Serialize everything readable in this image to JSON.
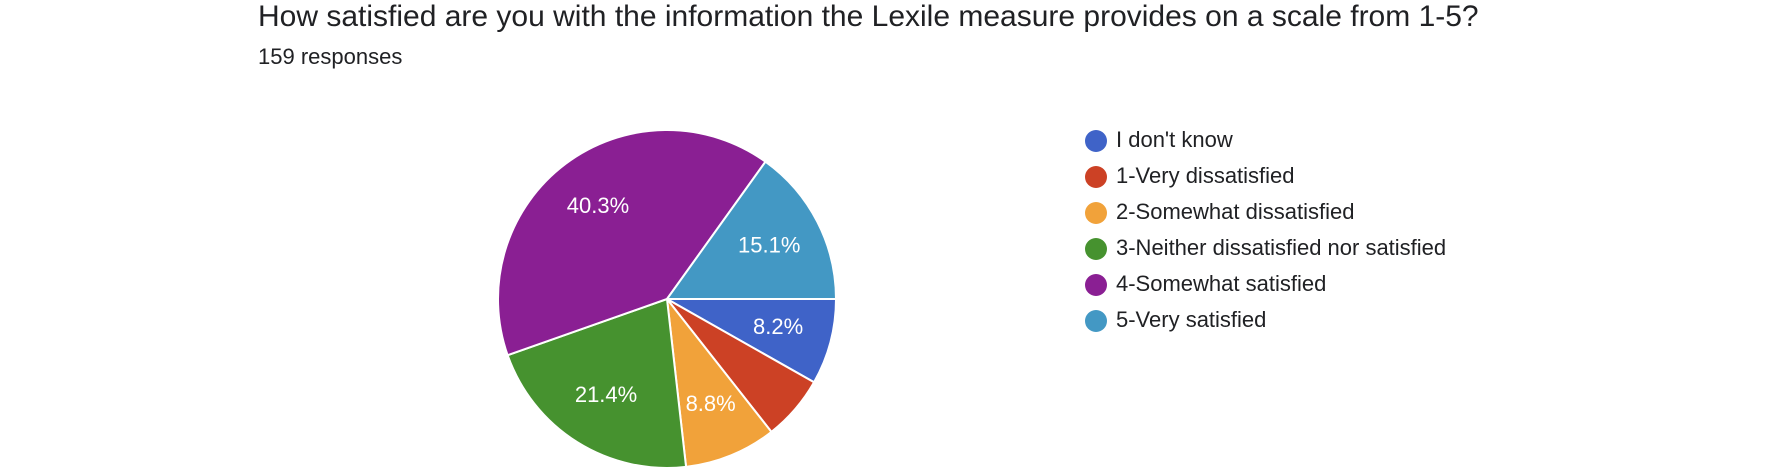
{
  "chart_data": {
    "type": "pie",
    "title": "How satisfied are you with the information the Lexile measure provides on a scale from 1-5?",
    "subtitle": "159 responses",
    "categories": [
      "I don't know",
      "1-Very dissatisfied",
      "2-Somewhat dissatisfied",
      "3-Neither dissatisfied nor satisfied",
      "4-Somewhat satisfied",
      "5-Very satisfied"
    ],
    "values": [
      8.2,
      6.2,
      8.8,
      21.4,
      40.3,
      15.1
    ],
    "value_labels": [
      "8.2%",
      null,
      "8.8%",
      "21.4%",
      "40.3%",
      "15.1%"
    ],
    "colors": [
      "#3f63c8",
      "#cc4125",
      "#f1a23a",
      "#46922f",
      "#8a1f93",
      "#4398c4"
    ],
    "legend": "right"
  }
}
